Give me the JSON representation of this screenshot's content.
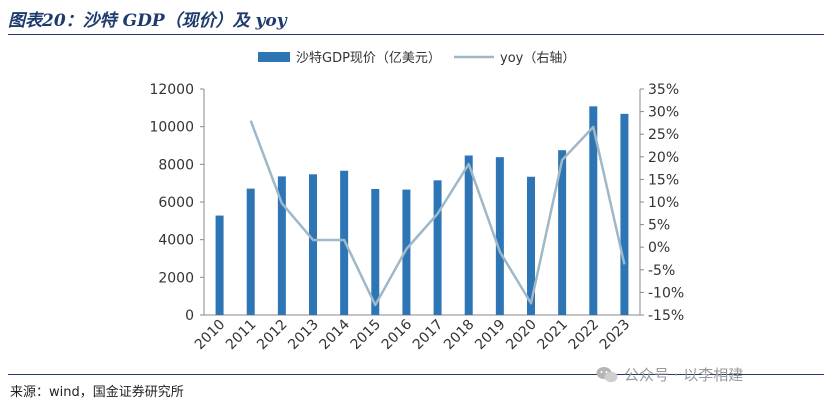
{
  "figure_title": "图表20：沙特 GDP（现价）及 yoy",
  "source_text": "来源：wind，国金证券研究所",
  "watermark_text": "公众号 · 以李相建",
  "colors": {
    "bar": "#2e75b6",
    "line": "#9fb8c8",
    "title": "#1f3b6e"
  },
  "chart_data": {
    "type": "bar",
    "categories": [
      "2010",
      "2011",
      "2012",
      "2013",
      "2014",
      "2015",
      "2016",
      "2017",
      "2018",
      "2019",
      "2020",
      "2021",
      "2022",
      "2023"
    ],
    "series": [
      {
        "name": "沙特GDP现价（亿美元）",
        "type": "bar",
        "axis": "left",
        "values": [
          5280,
          6710,
          7360,
          7470,
          7660,
          6690,
          6660,
          7150,
          8470,
          8380,
          7340,
          8750,
          11080,
          10680
        ]
      },
      {
        "name": "yoy（右轴）",
        "type": "line",
        "axis": "right",
        "values": [
          null,
          28.0,
          9.7,
          1.6,
          1.6,
          -12.8,
          -0.4,
          7.4,
          18.4,
          -1.0,
          -12.4,
          19.3,
          26.6,
          -3.8
        ]
      }
    ],
    "y_left": {
      "min": 0,
      "max": 12000,
      "ticks": [
        "0",
        "2000",
        "4000",
        "6000",
        "8000",
        "10000",
        "12000"
      ]
    },
    "y_right": {
      "min": -15,
      "max": 35,
      "ticks": [
        "-15%",
        "-10%",
        "-5%",
        "0%",
        "5%",
        "10%",
        "15%",
        "20%",
        "25%",
        "30%",
        "35%"
      ]
    },
    "legend_position": "top-center",
    "grid": false
  }
}
